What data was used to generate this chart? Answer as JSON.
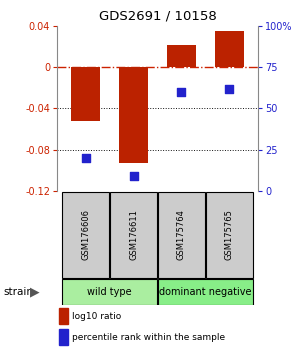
{
  "title": "GDS2691 / 10158",
  "samples": [
    "GSM176606",
    "GSM176611",
    "GSM175764",
    "GSM175765"
  ],
  "log10_ratio": [
    -0.052,
    -0.093,
    0.022,
    0.035
  ],
  "percentile_rank_pct": [
    20,
    9,
    60,
    62
  ],
  "ylim_left": [
    -0.12,
    0.04
  ],
  "ylim_right": [
    0,
    100
  ],
  "yticks_left": [
    -0.12,
    -0.08,
    -0.04,
    0.0,
    0.04
  ],
  "yticks_right": [
    0,
    25,
    50,
    75,
    100
  ],
  "bar_color": "#bb2200",
  "dot_color": "#2222cc",
  "zero_line_color": "#cc2200",
  "grid_color": "#111111",
  "label_color_left": "#cc2200",
  "label_color_right": "#2222cc",
  "legend_bar_label": "log10 ratio",
  "legend_dot_label": "percentile rank within the sample",
  "sample_box_color": "#cccccc",
  "wt_color": "#aaeea0",
  "dn_color": "#88ee88"
}
